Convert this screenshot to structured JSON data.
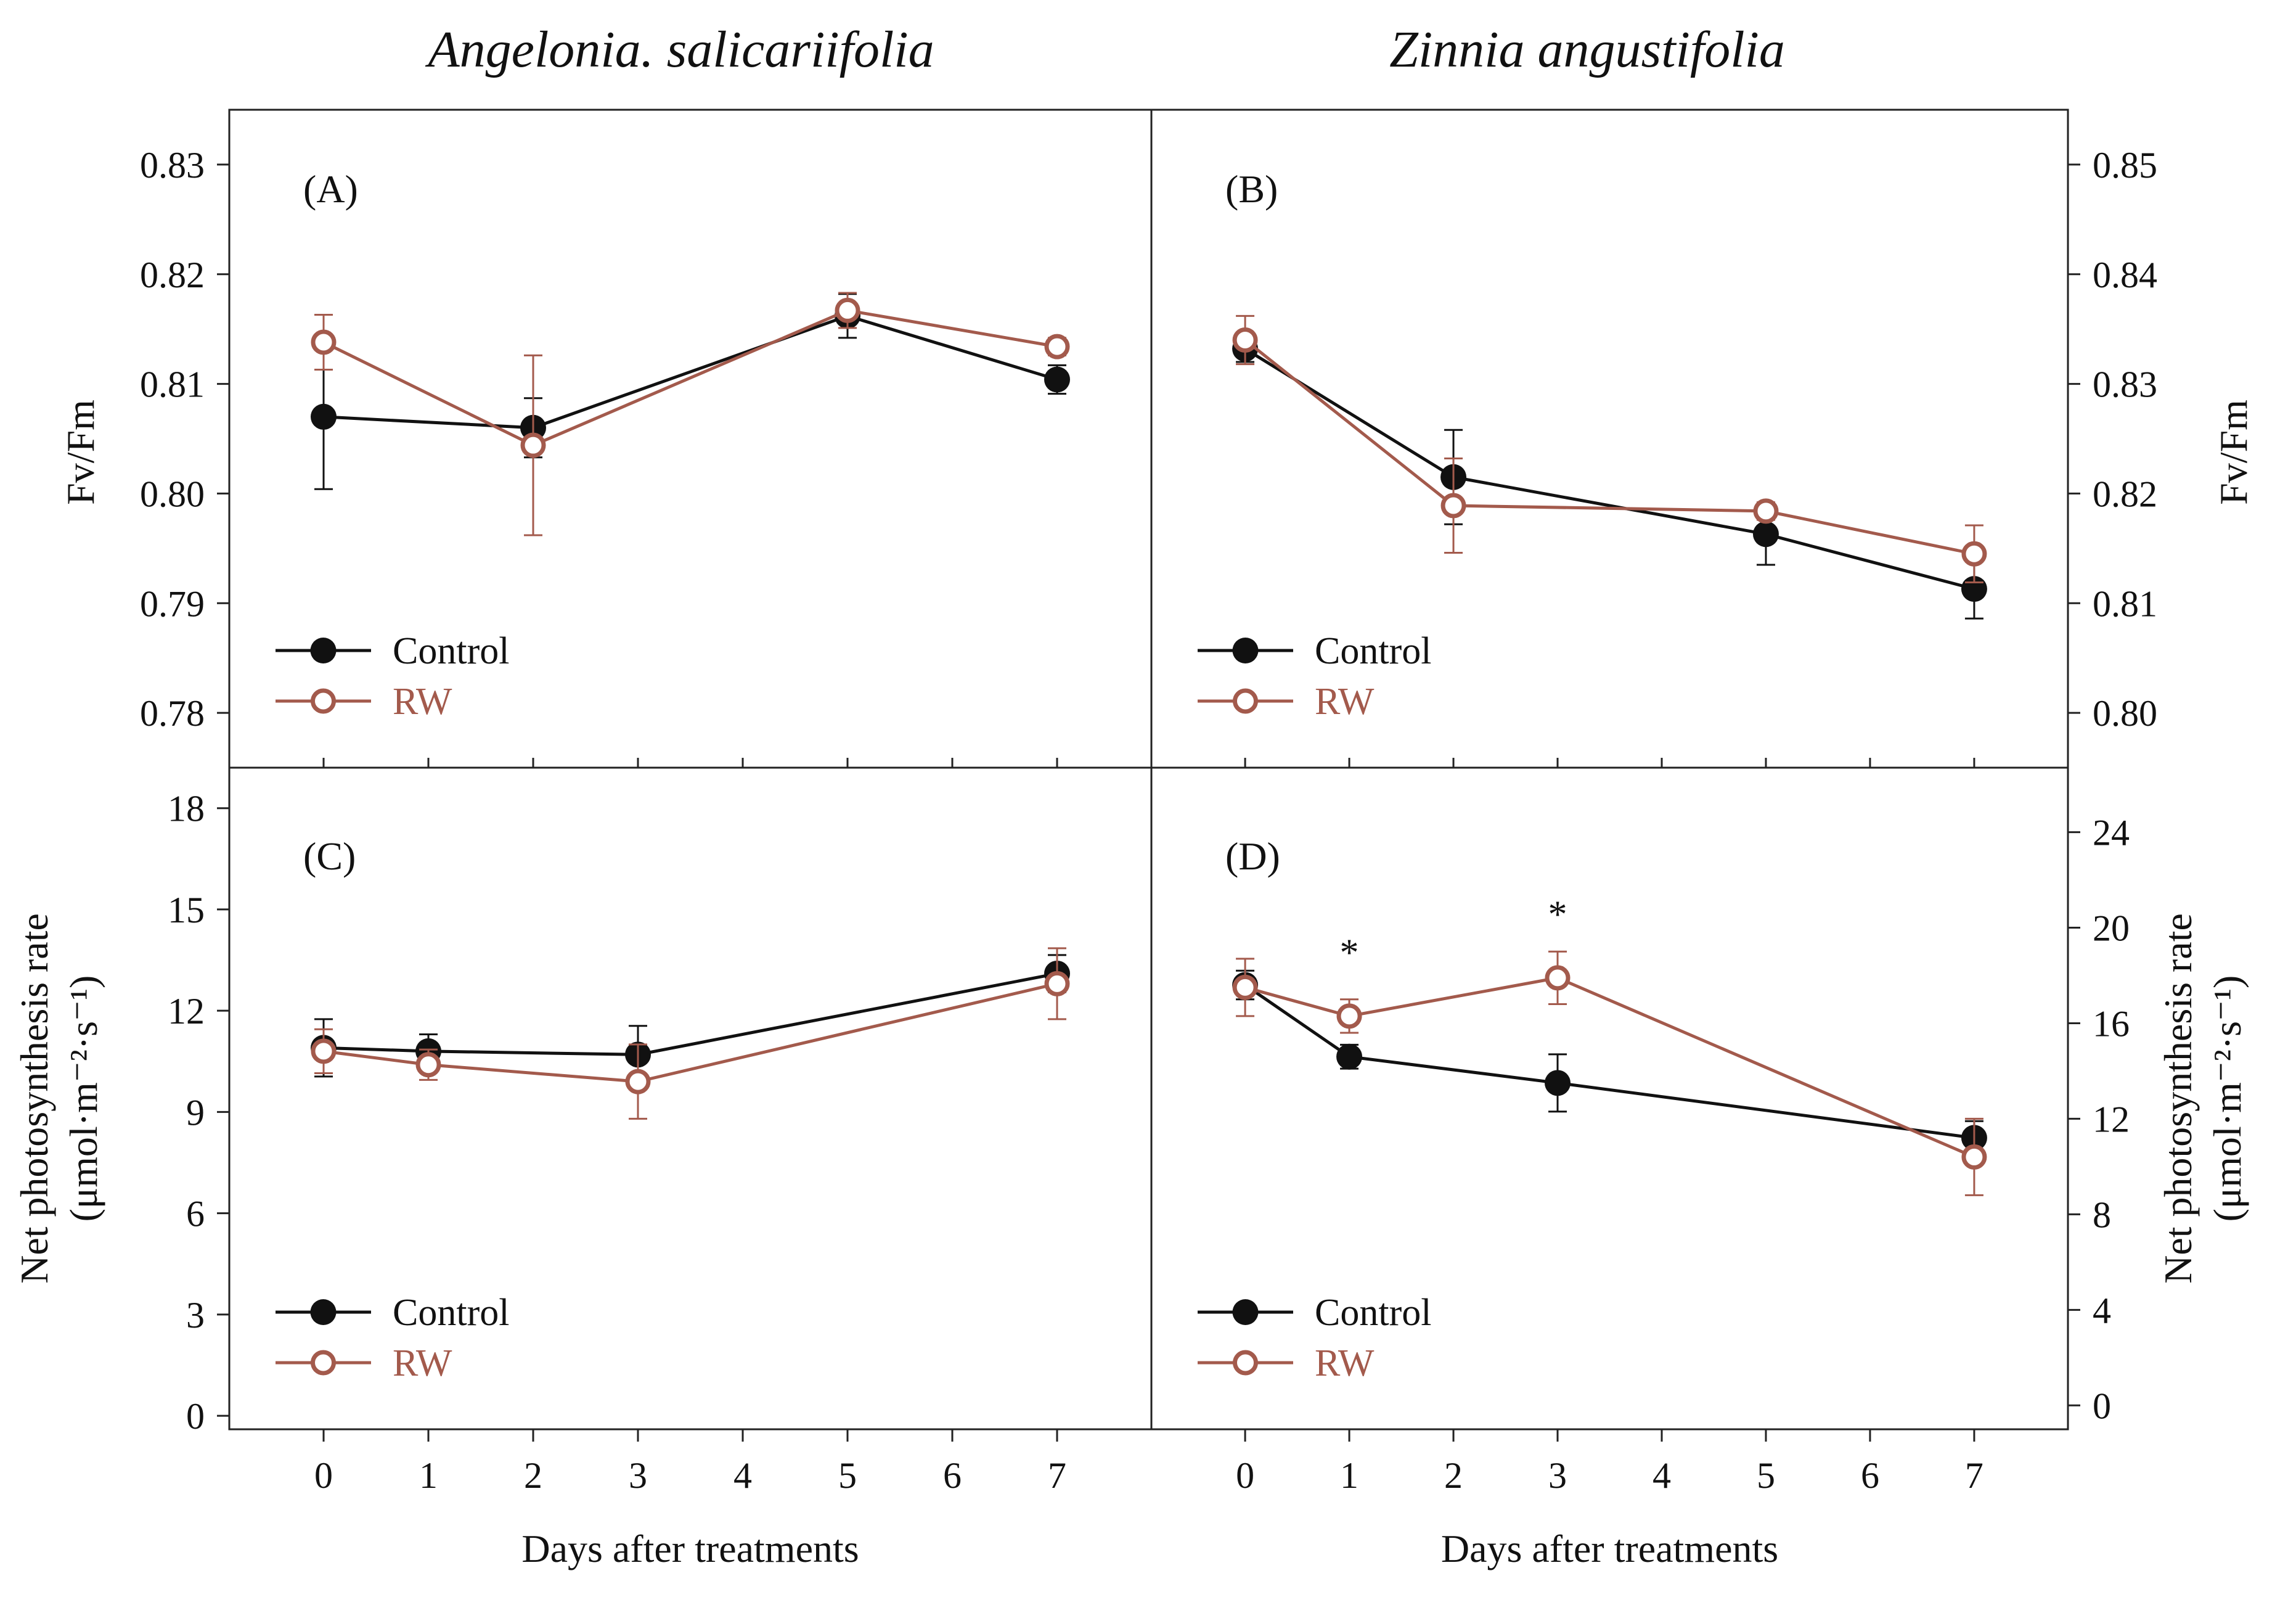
{
  "figure": {
    "columns": [
      "Angelonia. salicariifolia",
      "Zinnia angustifolia"
    ]
  },
  "chart_data": [
    {
      "panel": "(A)",
      "type": "line",
      "xlabel": "",
      "ylabel": "Fv/Fm",
      "ylim": [
        0.775,
        0.835
      ],
      "yticks": [
        "0.78",
        "0.79",
        "0.80",
        "0.81",
        "0.82",
        "0.83"
      ],
      "xlim": [
        -0.9,
        7.9
      ],
      "xticks": [
        "0",
        "1",
        "2",
        "3",
        "4",
        "5",
        "6",
        "7"
      ],
      "yaxis": "left",
      "legend": [
        "Control",
        "RW"
      ],
      "series": [
        {
          "name": "Control",
          "x": [
            0,
            2,
            5,
            7
          ],
          "values": [
            0.807,
            0.806,
            0.8162,
            0.8104
          ],
          "err": [
            0.0066,
            0.0027,
            0.002,
            0.0013
          ]
        },
        {
          "name": "RW",
          "x": [
            0,
            2,
            5,
            7
          ],
          "values": [
            0.8138,
            0.8044,
            0.8167,
            0.8134
          ],
          "err": [
            0.0025,
            0.0082,
            0.0016,
            0.0008
          ]
        }
      ],
      "annotations": []
    },
    {
      "panel": "(B)",
      "type": "line",
      "xlabel": "",
      "ylabel": "Fv/Fm",
      "ylim": [
        0.795,
        0.855
      ],
      "yticks": [
        "0.80",
        "0.81",
        "0.82",
        "0.83",
        "0.84",
        "0.85"
      ],
      "xlim": [
        -0.9,
        7.9
      ],
      "xticks": [
        "0",
        "1",
        "2",
        "3",
        "4",
        "5",
        "6",
        "7"
      ],
      "yaxis": "right",
      "legend": [
        "Control",
        "RW"
      ],
      "series": [
        {
          "name": "Control",
          "x": [
            0,
            2,
            5,
            7
          ],
          "values": [
            0.8332,
            0.8215,
            0.8163,
            0.8113
          ],
          "err": [
            0.0012,
            0.0043,
            0.0028,
            0.0027
          ]
        },
        {
          "name": "RW",
          "x": [
            0,
            2,
            5,
            7
          ],
          "values": [
            0.834,
            0.8189,
            0.8184,
            0.8145
          ],
          "err": [
            0.0022,
            0.0043,
            0.0008,
            0.0026
          ]
        }
      ],
      "annotations": []
    },
    {
      "panel": "(C)",
      "type": "line",
      "xlabel": "Days after treatments",
      "ylabel_lines": [
        "Net photosynthesis rate",
        "(μmol·m⁻²·s⁻¹)"
      ],
      "ylim": [
        -0.4,
        19.2
      ],
      "yticks": [
        "0",
        "3",
        "6",
        "9",
        "12",
        "15",
        "18"
      ],
      "xlim": [
        -0.9,
        7.9
      ],
      "xticks": [
        "0",
        "1",
        "2",
        "3",
        "4",
        "5",
        "6",
        "7"
      ],
      "yaxis": "left",
      "legend": [
        "Control",
        "RW"
      ],
      "series": [
        {
          "name": "Control",
          "x": [
            0,
            1,
            3,
            7
          ],
          "values": [
            10.9,
            10.8,
            10.7,
            13.1
          ],
          "err": [
            0.85,
            0.5,
            0.85,
            0.55
          ]
        },
        {
          "name": "RW",
          "x": [
            0,
            1,
            3,
            7
          ],
          "values": [
            10.8,
            10.4,
            9.9,
            12.8
          ],
          "err": [
            0.65,
            0.45,
            1.1,
            1.05
          ]
        }
      ],
      "annotations": []
    },
    {
      "panel": "(D)",
      "type": "line",
      "xlabel": "Days after treatments",
      "ylabel_lines": [
        "Net photosynthesis rate",
        "(μmol·m⁻²·s⁻¹)"
      ],
      "ylim": [
        -1,
        26.7
      ],
      "yticks": [
        "0",
        "4",
        "8",
        "12",
        "16",
        "20",
        "24"
      ],
      "xlim": [
        -0.9,
        7.9
      ],
      "xticks": [
        "0",
        "1",
        "2",
        "3",
        "4",
        "5",
        "6",
        "7"
      ],
      "yaxis": "right",
      "legend": [
        "Control",
        "RW"
      ],
      "series": [
        {
          "name": "Control",
          "x": [
            0,
            1,
            3,
            7
          ],
          "values": [
            17.6,
            14.6,
            13.5,
            11.2
          ],
          "err": [
            0.6,
            0.5,
            1.2,
            0.7
          ]
        },
        {
          "name": "RW",
          "x": [
            0,
            1,
            3,
            7
          ],
          "values": [
            17.5,
            16.3,
            17.9,
            10.4
          ],
          "err": [
            1.2,
            0.7,
            1.1,
            1.6
          ]
        }
      ],
      "annotations": [
        {
          "text": "*",
          "x": 1,
          "y": 19.2
        },
        {
          "text": "*",
          "x": 3,
          "y": 20.8
        }
      ]
    }
  ],
  "colors": {
    "control": "#111111",
    "rw": "#a35a4c",
    "axis": "#222222"
  }
}
